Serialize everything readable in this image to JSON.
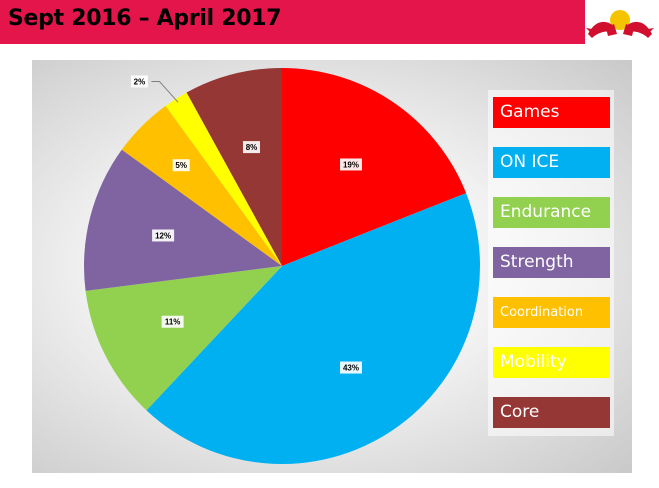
{
  "header": {
    "title": "Sept 2016 – April 2017",
    "logo_icon": "red-bull-logo-icon"
  },
  "colors": {
    "header_bar": "#e4154b"
  },
  "chart_data": {
    "type": "pie",
    "title": "",
    "legend_position": "right",
    "slices": [
      {
        "label": "Games",
        "value": 19,
        "data_label": "19%",
        "color": "#ff0000"
      },
      {
        "label": "ON ICE",
        "value": 43,
        "data_label": "43%",
        "color": "#00b0f0"
      },
      {
        "label": "Endurance",
        "value": 11,
        "data_label": "11%",
        "color": "#92d050"
      },
      {
        "label": "Strength",
        "value": 12,
        "data_label": "12%",
        "color": "#8064a2"
      },
      {
        "label": "Coordination",
        "value": 5,
        "data_label": "5%",
        "color": "#ffc000"
      },
      {
        "label": "Mobility",
        "value": 2,
        "data_label": "2%",
        "color": "#ffff00"
      },
      {
        "label": "Core",
        "value": 8,
        "data_label": "8%",
        "color": "#953735"
      }
    ]
  }
}
